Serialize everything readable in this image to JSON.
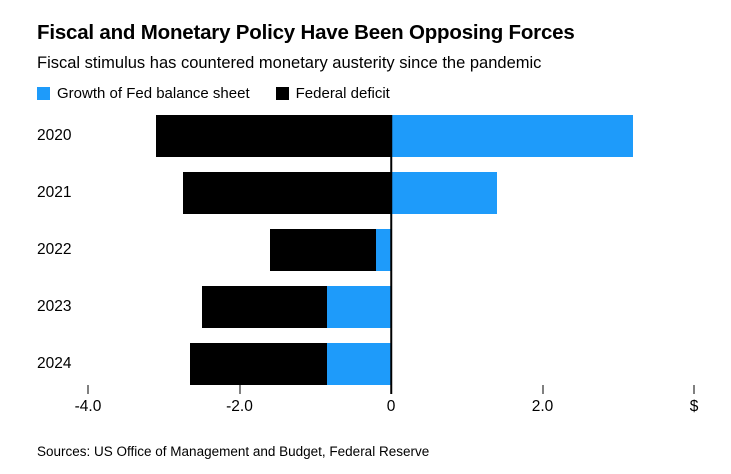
{
  "header": {
    "title": "Fiscal and Monetary Policy Have Been Opposing Forces",
    "subtitle": "Fiscal stimulus has countered monetary austerity since the pandemic"
  },
  "colors": {
    "fed_balance_sheet": "#1e9bfa",
    "federal_deficit": "#000000",
    "background": "#ffffff"
  },
  "legend": [
    {
      "key": "fed_balance_sheet",
      "label": "Growth of Fed balance sheet",
      "color": "#1e9bfa"
    },
    {
      "key": "federal_deficit",
      "label": "Federal deficit",
      "color": "#000000"
    }
  ],
  "chart_data": {
    "type": "bar",
    "orientation": "horizontal",
    "stacked": true,
    "title": "Fiscal and Monetary Policy Have Been Opposing Forces",
    "subtitle": "Fiscal stimulus has countered monetary austerity since the pandemic",
    "categories": [
      "2020",
      "2021",
      "2022",
      "2023",
      "2024"
    ],
    "series": [
      {
        "name": "Growth of Fed balance sheet",
        "key": "fed_balance_sheet",
        "color": "#1e9bfa",
        "values": [
          3.2,
          1.4,
          -0.2,
          -0.85,
          -0.85
        ]
      },
      {
        "name": "Federal deficit",
        "key": "federal_deficit",
        "color": "#000000",
        "values": [
          -3.1,
          -2.75,
          -1.4,
          -1.65,
          -1.8
        ]
      }
    ],
    "xlabel": "",
    "ylabel": "",
    "xlim": [
      -4.0,
      4.0
    ],
    "unit": "$",
    "grid": false,
    "legend_position": "top",
    "xticks": [
      {
        "value": -4.0,
        "label": "-4.0"
      },
      {
        "value": -2.0,
        "label": "-2.0"
      },
      {
        "value": 0,
        "label": "0"
      },
      {
        "value": 2.0,
        "label": "2.0"
      },
      {
        "value": 4.0,
        "label": "$"
      }
    ]
  },
  "footer": {
    "sources": "Sources: US Office of Management and Budget, Federal Reserve"
  }
}
